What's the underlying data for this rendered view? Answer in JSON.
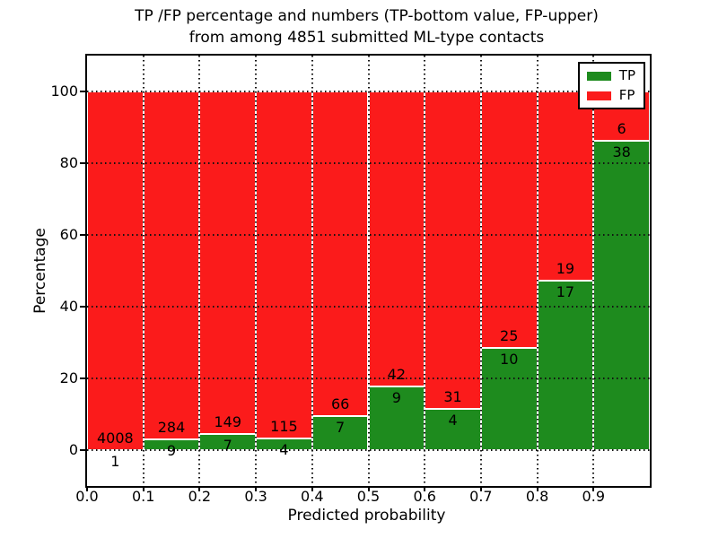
{
  "title": {
    "line1": "TP /FP percentage and numbers (TP-bottom value, FP-upper)",
    "line2": "from among 4851 submitted ML-type contacts"
  },
  "axes": {
    "xlabel": "Predicted probability",
    "ylabel": "Percentage"
  },
  "legend": {
    "items": [
      {
        "label": "TP",
        "color": "#1e8b1e"
      },
      {
        "label": "FP",
        "color": "#fb1b1b"
      }
    ],
    "position": "upper right"
  },
  "colors": {
    "background": "#ffffff",
    "text": "#000000",
    "grid": "#111111",
    "bar_edge": "#ffffff",
    "tp_green": "#1e8b1e",
    "fp_red": "#fb1b1b"
  },
  "chart_data": {
    "type": "bar",
    "stacked": true,
    "normalized": "percent of contacts per bin",
    "title": "TP /FP percentage and numbers (TP-bottom value, FP-upper) from among 4851 submitted ML-type contacts",
    "xlabel": "Predicted probability",
    "ylabel": "Percentage",
    "xlim": [
      0.0,
      1.0
    ],
    "ylim": [
      -10,
      110
    ],
    "yticks": [
      0,
      20,
      40,
      60,
      80,
      100
    ],
    "xtick_labels": [
      "0.0",
      "0.1",
      "0.2",
      "0.3",
      "0.4",
      "0.5",
      "0.6",
      "0.7",
      "0.8",
      "0.9"
    ],
    "grid": "dotted",
    "legend_position": "upper right",
    "bin_edges": [
      0.0,
      0.1,
      0.2,
      0.3,
      0.4,
      0.5,
      0.6,
      0.7,
      0.8,
      0.9,
      1.0
    ],
    "series": [
      {
        "name": "TP",
        "color": "#1e8b1e",
        "counts": [
          1,
          9,
          7,
          4,
          7,
          9,
          4,
          10,
          17,
          38
        ]
      },
      {
        "name": "FP",
        "color": "#fb1b1b",
        "counts": [
          4008,
          284,
          149,
          115,
          66,
          42,
          31,
          25,
          19,
          6
        ]
      }
    ],
    "tp_percent_by_bin": [
      0.02,
      3.07,
      4.49,
      3.36,
      9.59,
      17.65,
      11.43,
      28.57,
      47.22,
      86.36
    ],
    "total_contacts": 4851
  }
}
